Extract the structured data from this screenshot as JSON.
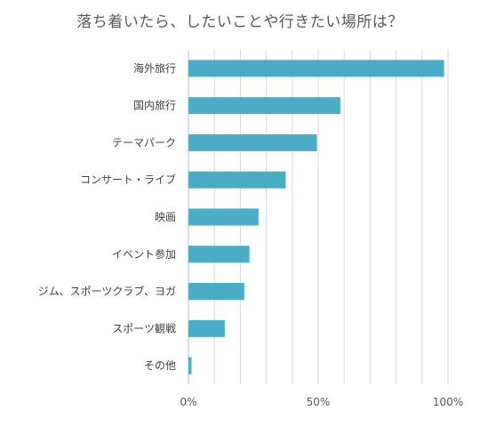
{
  "chart_data": {
    "type": "bar",
    "orientation": "horizontal",
    "title": "落ち着いたら、したいことや行きたい場所は？",
    "categories": [
      "海外旅行",
      "国内旅行",
      "テーマパーク",
      "コンサート・ライブ",
      "映画",
      "イベント参加",
      "ジム、スポーツクラブ、ヨガ",
      "スポーツ観戦",
      "その他"
    ],
    "values": [
      98.5,
      58.5,
      49.5,
      37.5,
      27,
      23.5,
      21.5,
      14,
      1.2
    ],
    "xlim": [
      0,
      100
    ],
    "x_ticks": [
      0,
      50,
      100
    ],
    "x_tick_labels": [
      "0%",
      "50%",
      "100%"
    ],
    "grid": "vertical",
    "bar_color": "#4BACC6",
    "gridline_color": "#D9D9D9"
  }
}
